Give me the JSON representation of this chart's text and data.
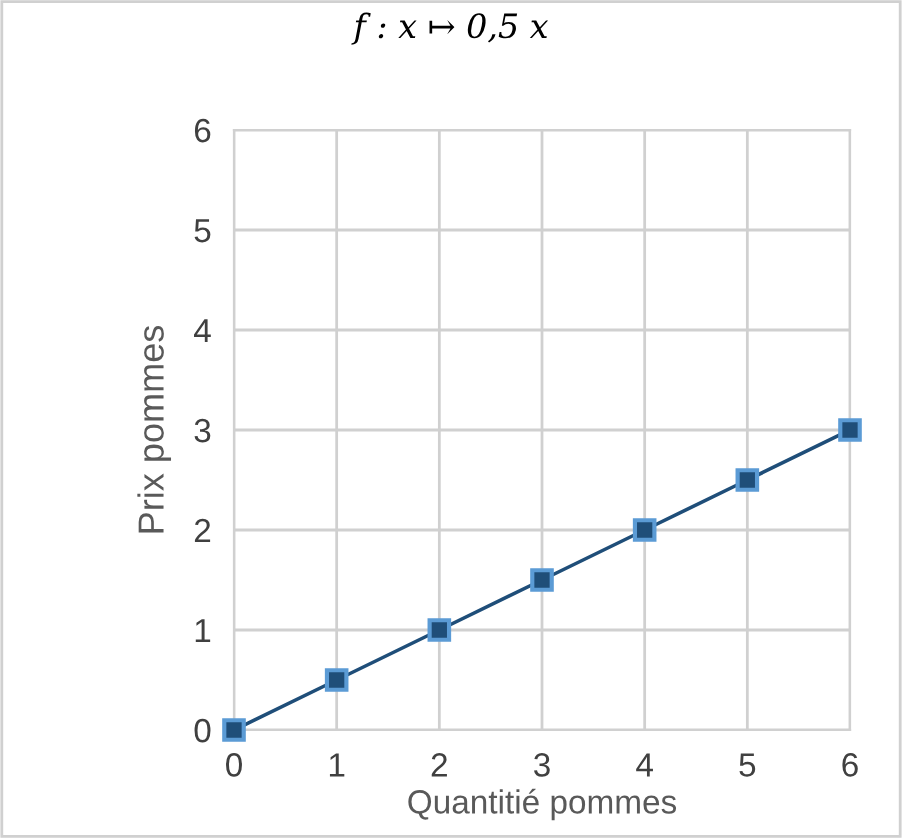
{
  "chart_data": {
    "type": "line",
    "title": "f : x ↦ 0,5 x",
    "xlabel": "Quantitié pommes",
    "ylabel": "Prix pommes",
    "x": [
      0,
      1,
      2,
      3,
      4,
      5,
      6
    ],
    "series": [
      {
        "color": "#1f4e79",
        "values": [
          0,
          0.5,
          1,
          1.5,
          2,
          2.5,
          3
        ]
      }
    ],
    "xlim": [
      0,
      6
    ],
    "ylim": [
      0,
      6
    ],
    "xticks": [
      0,
      1,
      2,
      3,
      4,
      5,
      6
    ],
    "yticks": [
      0,
      1,
      2,
      3,
      4,
      5,
      6
    ],
    "grid": true,
    "marker": "square",
    "line_style": "solid"
  }
}
